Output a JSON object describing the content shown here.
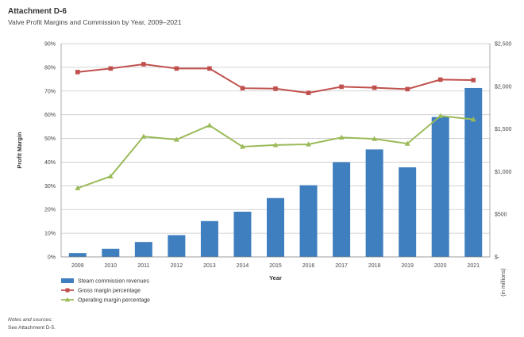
{
  "header": {
    "attachment": "Attachment D-6",
    "title": "Valve Profit Margins and Commission by Year, 2009–2021"
  },
  "chart_data": {
    "type": "bar+line",
    "categories": [
      "2009",
      "2010",
      "2011",
      "2012",
      "2013",
      "2014",
      "2015",
      "2016",
      "2017",
      "2018",
      "2019",
      "2020",
      "2021"
    ],
    "series": [
      {
        "name": "Steam commission revenues",
        "type": "bar",
        "axis": "right",
        "values": [
          45,
          95,
          175,
          255,
          420,
          530,
          690,
          840,
          1110,
          1260,
          1050,
          1640,
          1980
        ]
      },
      {
        "name": "Gross margin percentage",
        "type": "line",
        "axis": "left",
        "marker": "square",
        "values": [
          78,
          79.5,
          81.3,
          79.5,
          79.5,
          71.2,
          71,
          69.2,
          71.8,
          71.4,
          70.8,
          74.8,
          74.6
        ]
      },
      {
        "name": "Operating margin percentage",
        "type": "line",
        "axis": "left",
        "marker": "triangle",
        "values": [
          29,
          34,
          50.8,
          49.5,
          55.5,
          46.5,
          47.2,
          47.5,
          50.4,
          49.8,
          47.8,
          59.5,
          58
        ]
      }
    ],
    "ylabel": "Profit Margin",
    "y2label": "(in millions)",
    "xlabel": "Year",
    "y_ticks": [
      "0%",
      "10%",
      "20%",
      "30%",
      "40%",
      "50%",
      "60%",
      "70%",
      "80%",
      "90%"
    ],
    "y2_ticks": [
      "$-",
      "$500",
      "$1,000",
      "$1,500",
      "$2,000",
      "$2,500"
    ],
    "ylim": [
      0,
      90
    ],
    "y2lim": [
      0,
      2500
    ],
    "grid": true,
    "legend": "bottom-left",
    "colors": {
      "bar": "#3f7fbf",
      "gross": "#c0504d",
      "operating": "#9bbb59",
      "grid": "#c8c8c8"
    }
  },
  "notes": {
    "heading": "Notes and sources:",
    "text": "See Attachment D-5."
  }
}
